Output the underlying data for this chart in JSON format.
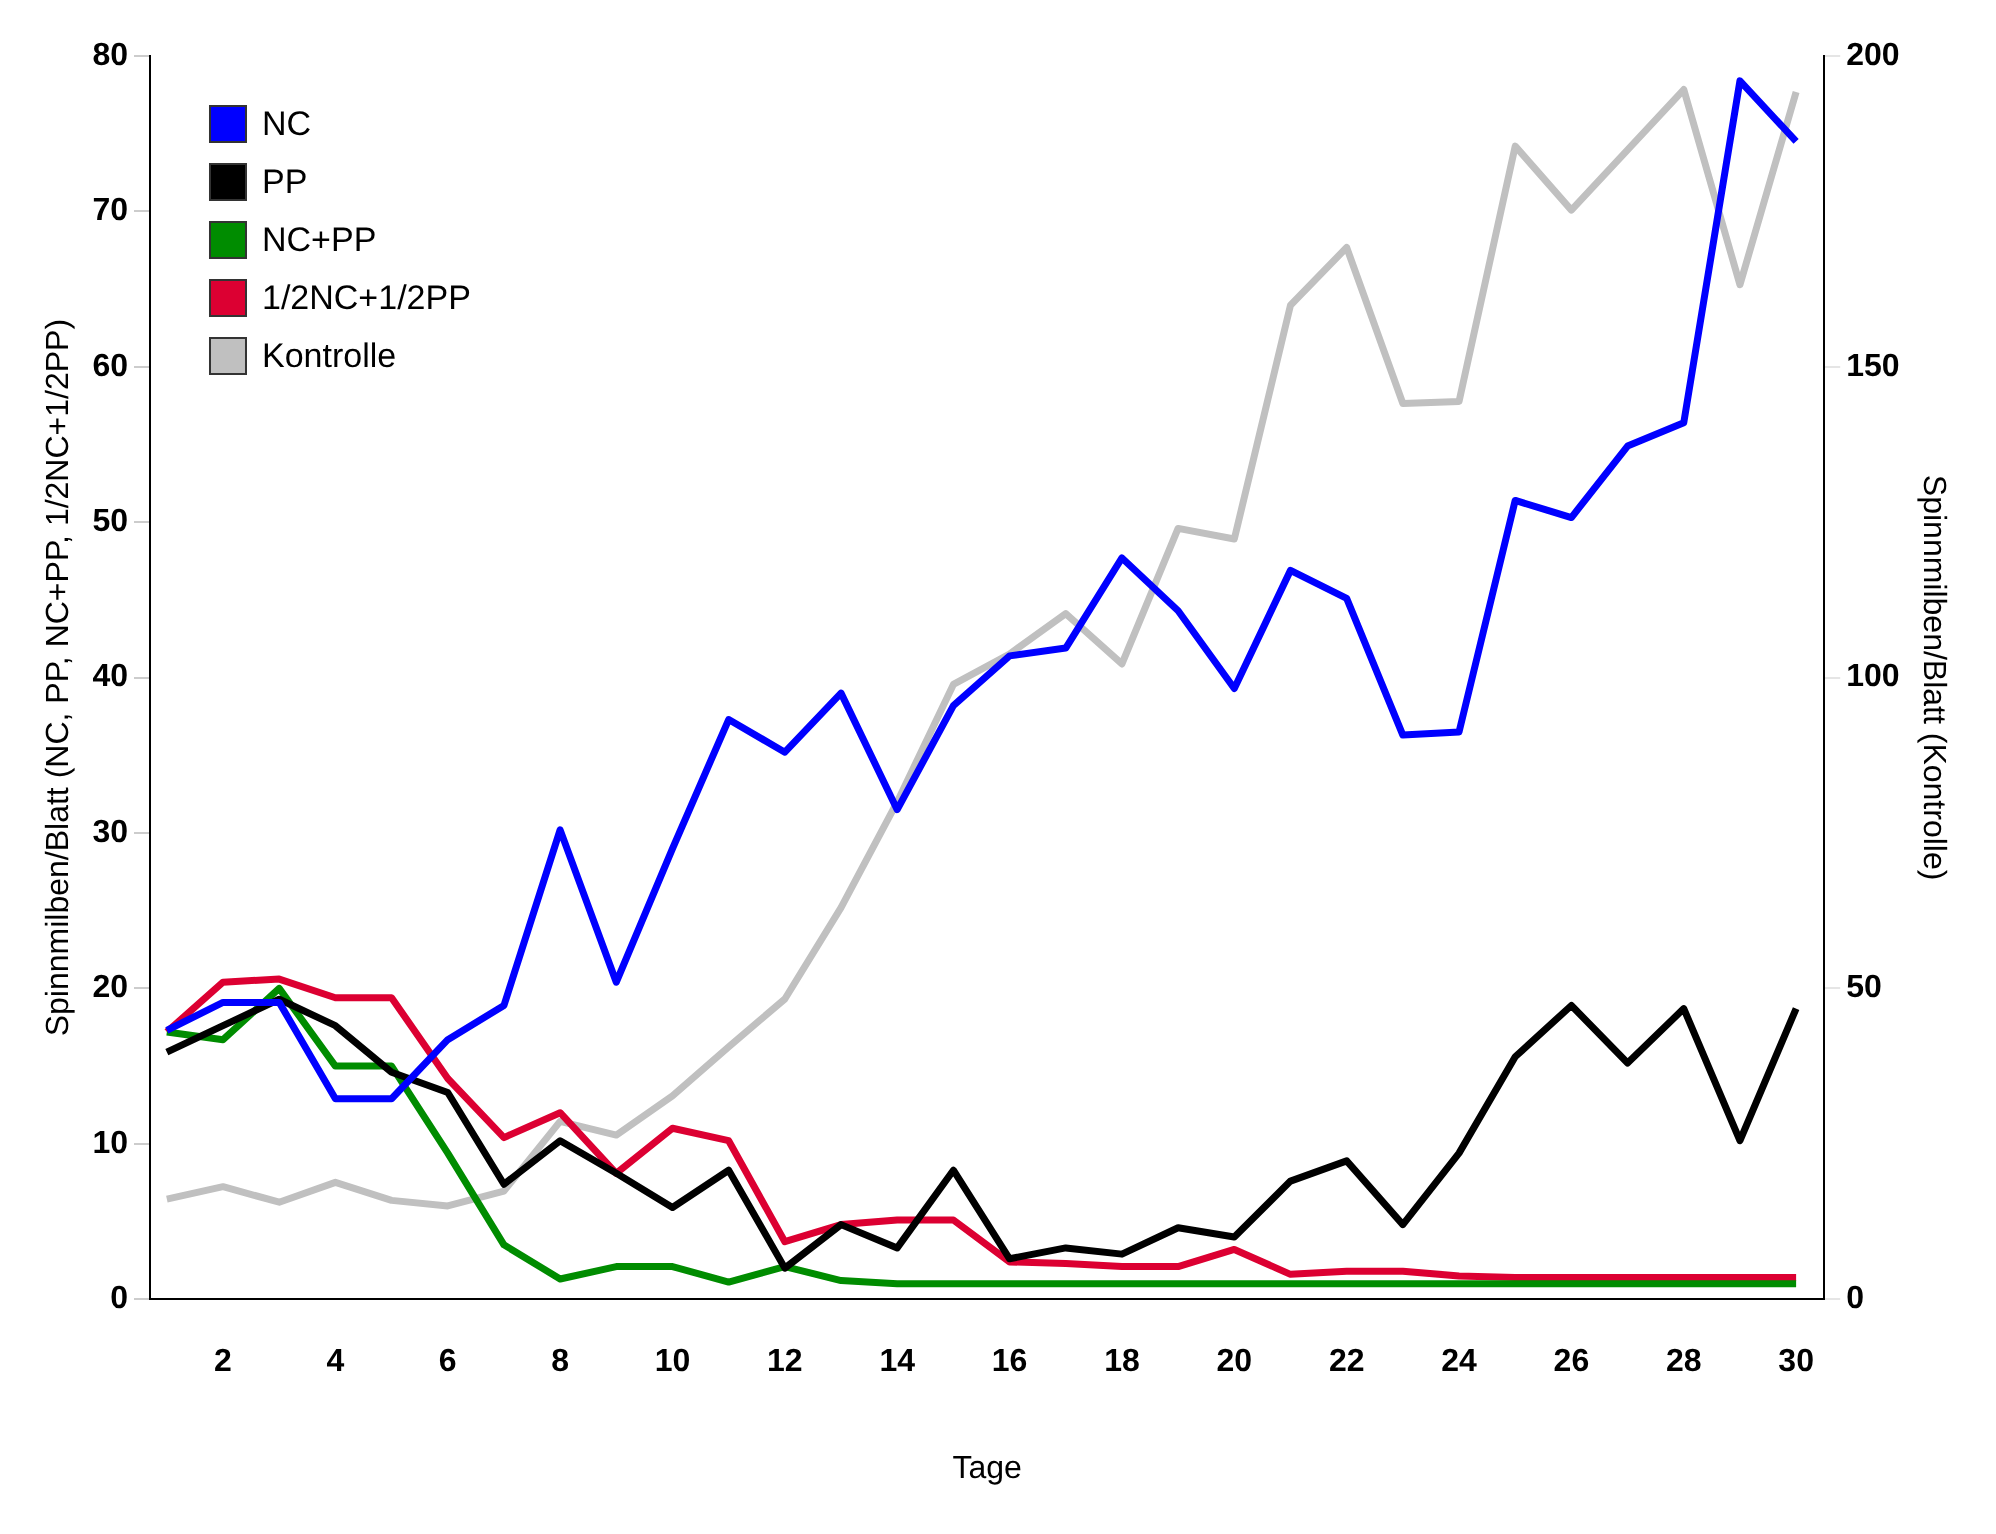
{
  "chart_data": {
    "type": "line",
    "xlabel": "Tage",
    "ylabel": "Spinnmilben/Blatt (NC, PP, NC+PP, 1/2NC+1/2PP)",
    "y2label": "Spinnmilben/Blatt (Kontrolle)",
    "x": [
      1,
      2,
      3,
      4,
      5,
      6,
      7,
      8,
      9,
      10,
      11,
      12,
      13,
      14,
      15,
      16,
      17,
      18,
      19,
      20,
      21,
      22,
      23,
      24,
      25,
      26,
      27,
      28,
      29,
      30
    ],
    "xlim": [
      0.7,
      30.5
    ],
    "xticks": [
      2,
      4,
      6,
      8,
      10,
      12,
      14,
      16,
      18,
      20,
      22,
      24,
      26,
      28,
      30
    ],
    "ylim": [
      0,
      80
    ],
    "yticks": [
      0,
      10,
      20,
      30,
      40,
      50,
      60,
      70,
      80
    ],
    "y2lim": [
      0,
      200
    ],
    "y2ticks": [
      0,
      50,
      100,
      150,
      200
    ],
    "grid": false,
    "legend": "top left",
    "marker": "none",
    "line_style": "solid",
    "series": [
      {
        "name": "NC",
        "color": "#0000ff",
        "values": [
          17.3,
          19.1,
          19.1,
          12.9,
          12.9,
          16.7,
          18.9,
          30.2,
          20.4,
          29,
          37.3,
          35.2,
          39,
          31.5,
          38.2,
          41.4,
          41.9,
          47.7,
          44.3,
          39.3,
          46.9,
          45.1,
          36.3,
          36.5,
          51.4,
          50.3,
          54.9,
          56.4,
          78.4,
          74.5
        ]
      },
      {
        "name": "PP",
        "color": "#000000",
        "values": [
          15.9,
          17.6,
          19.3,
          17.6,
          14.6,
          13.3,
          7.4,
          10.2,
          8.1,
          5.9,
          8.3,
          2.0,
          4.8,
          3.3,
          8.3,
          2.6,
          3.3,
          2.9,
          4.6,
          4.0,
          7.6,
          8.9,
          4.8,
          9.4,
          15.6,
          18.9,
          15.2,
          18.7,
          10.2,
          18.7
        ]
      },
      {
        "name": "NC+PP",
        "color": "#008c00",
        "values": [
          17.2,
          16.7,
          20.0,
          15.0,
          15.0,
          9.4,
          3.5,
          1.3,
          2.1,
          2.1,
          1.1,
          2.1,
          1.2,
          1.0,
          1.0,
          1.0,
          1.0,
          1.0,
          1.0,
          1.0,
          1.0,
          1.0,
          1.0,
          1.0,
          1.0,
          1.0,
          1.0,
          1.0,
          1.0,
          1.0
        ]
      },
      {
        "name": "1/2NC+1/2PP",
        "color": "#dc0032",
        "values": [
          17.2,
          20.4,
          20.6,
          19.4,
          19.4,
          14.2,
          10.4,
          12.0,
          8.1,
          11.0,
          10.2,
          3.7,
          4.8,
          5.1,
          5.1,
          2.4,
          2.3,
          2.1,
          2.1,
          3.2,
          1.6,
          1.8,
          1.8,
          1.5,
          1.4,
          1.4,
          1.4,
          1.4,
          1.4,
          1.4
        ]
      },
      {
        "name": "Kontrolle",
        "color": "#c0c0c0",
        "axis": "y2",
        "values": [
          16.1,
          18.1,
          15.6,
          18.8,
          15.9,
          15.0,
          17.4,
          28.6,
          26.4,
          32.7,
          40.6,
          48.3,
          63,
          80,
          98.9,
          103.8,
          110.3,
          102.2,
          124.0,
          122.3,
          159.9,
          169.2,
          144.1,
          144.4,
          185.5,
          175.2,
          184.9,
          194.6,
          163.2,
          194.2
        ]
      }
    ]
  }
}
